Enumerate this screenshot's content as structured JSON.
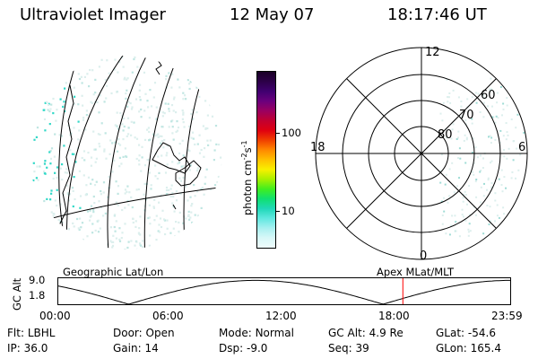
{
  "header": {
    "instrument": "Ultraviolet Imager",
    "date": "12 May 07",
    "time": "18:17:46 UT"
  },
  "colorbar": {
    "unit_label": "photon cm",
    "unit_exp1": "-2",
    "unit_s": "s",
    "unit_exp2": "-1",
    "ticks": [
      "100",
      "10"
    ],
    "colors": [
      "#1a0026",
      "#2c0048",
      "#400070",
      "#6b007d",
      "#9a0060",
      "#c20030",
      "#e00010",
      "#f04000",
      "#ff8800",
      "#ffc000",
      "#f8f000",
      "#a8f000",
      "#40ee20",
      "#10e070",
      "#20d8b8",
      "#60e8e0",
      "#a8f0f0",
      "#d8f8f8",
      "#eefcfc"
    ]
  },
  "polar_plot": {
    "lat_labels": [
      "80",
      "70",
      "60"
    ],
    "mlt_labels": [
      "12",
      "18",
      "6",
      "0"
    ]
  },
  "timeline": {
    "left_label": "Geographic Lat/Lon",
    "right_label": "Apex MLat/MLT",
    "axis_title": "GC Alt",
    "y_ticks": [
      "9.0",
      "1.8"
    ],
    "x_ticks": [
      "00:00",
      "06:00",
      "12:00",
      "18:00",
      "23:59"
    ],
    "current_time_fraction": 0.763
  },
  "status": {
    "row1": [
      {
        "key": "Flt:",
        "value": "LBHL"
      },
      {
        "key": "Door:",
        "value": "Open"
      },
      {
        "key": "Mode:",
        "value": "Normal"
      },
      {
        "key": "GC Alt:",
        "value": "4.9 Re"
      },
      {
        "key": "GLat:",
        "value": "-54.6"
      }
    ],
    "row2": [
      {
        "key": "IP:",
        "value": "36.0"
      },
      {
        "key": "Gain:",
        "value": "14"
      },
      {
        "key": "Dsp:",
        "value": "-9.0"
      },
      {
        "key": "Seq:",
        "value": "39"
      },
      {
        "key": "GLon:",
        "value": "165.4"
      }
    ]
  }
}
